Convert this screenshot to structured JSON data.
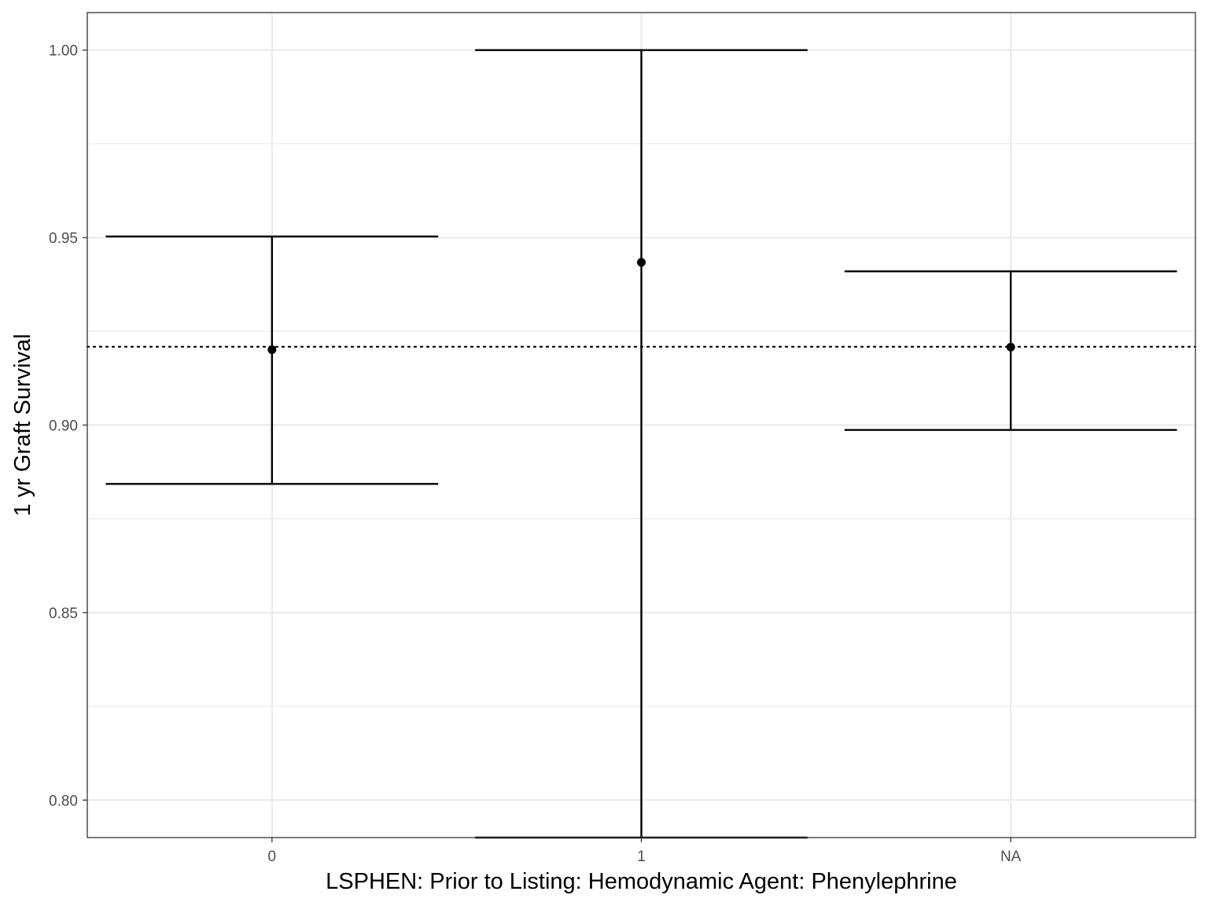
{
  "chart_data": {
    "type": "errorbar",
    "xlabel": "LSPHEN: Prior to Listing: Hemodynamic Agent: Phenylephrine",
    "ylabel": "1 yr Graft Survival",
    "categories": [
      "0",
      "1",
      "NA"
    ],
    "estimate": [
      0.9201,
      0.9434,
      0.9208
    ],
    "lower": [
      0.8843,
      0.79,
      0.8987
    ],
    "upper": [
      0.9503,
      1.0,
      0.941
    ],
    "reference_line": 0.9209,
    "reference_style": "dotted",
    "ylim": [
      0.79,
      1.01
    ],
    "yticks": [
      0.8,
      0.85,
      0.9,
      0.95,
      1.0
    ],
    "ytick_labels": [
      "0.80",
      "0.85",
      "0.90",
      "0.95",
      "1.00"
    ],
    "grid": true,
    "colors": {
      "marks": "#000000",
      "grid": "#ebebeb",
      "panel_border": "#333333",
      "tick_text": "#4d4d4d"
    }
  }
}
